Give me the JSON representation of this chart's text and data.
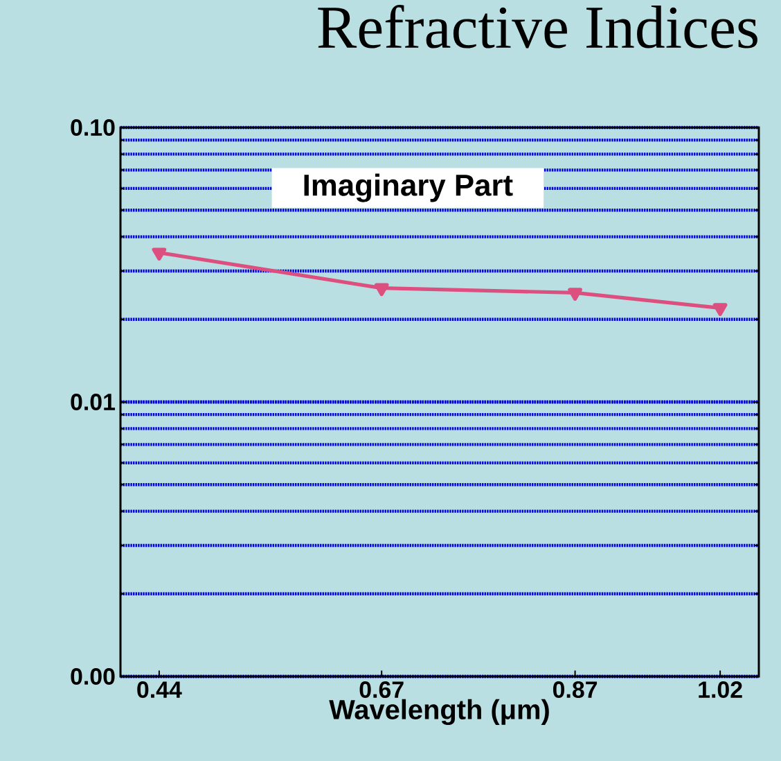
{
  "chart_data": {
    "type": "line",
    "title": "Refractive Indices",
    "xlabel": "Wavelength (μm)",
    "annotations": [
      "Imaginary Part"
    ],
    "x": [
      0.44,
      0.67,
      0.87,
      1.02
    ],
    "series": [
      {
        "color": "#dc4f7f",
        "values": [
          0.035,
          0.026,
          0.025,
          0.022
        ]
      }
    ],
    "xlim": [
      0.4,
      1.06
    ],
    "xticks": [
      0.44,
      0.67,
      0.87,
      1.02
    ],
    "ylim": [
      0.001,
      0.1
    ],
    "yticks": [
      {
        "value": 0.001,
        "label": "0.00"
      },
      0.01,
      {
        "value": 0.1,
        "label": "0.10"
      }
    ],
    "log": "y",
    "grid": "y",
    "marker": "triangle",
    "line_style": "solid"
  }
}
